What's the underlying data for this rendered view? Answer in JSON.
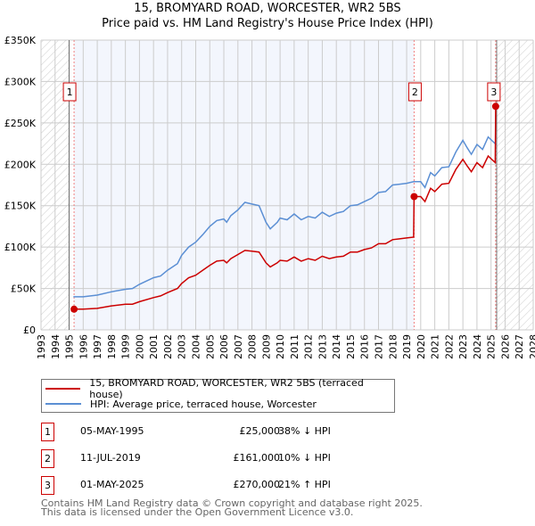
{
  "chart_data": {
    "type": "line",
    "title": "15, BROMYARD ROAD, WORCESTER, WR2 5BS",
    "subtitle": "Price paid vs. HM Land Registry's House Price Index (HPI)",
    "xlim": [
      1993,
      2028
    ],
    "ylim": [
      0,
      350000
    ],
    "yticks": [
      {
        "v": 0,
        "label": "£0"
      },
      {
        "v": 50000,
        "label": "£50K"
      },
      {
        "v": 100000,
        "label": "£100K"
      },
      {
        "v": 150000,
        "label": "£150K"
      },
      {
        "v": 200000,
        "label": "£200K"
      },
      {
        "v": 250000,
        "label": "£250K"
      },
      {
        "v": 300000,
        "label": "£300K"
      },
      {
        "v": 350000,
        "label": "£350K"
      }
    ],
    "xticks": [
      "1993",
      "1994",
      "1995",
      "1996",
      "1997",
      "1998",
      "1999",
      "2000",
      "2001",
      "2002",
      "2003",
      "2004",
      "2005",
      "2006",
      "2007",
      "2008",
      "2009",
      "2010",
      "2011",
      "2012",
      "2013",
      "2014",
      "2015",
      "2016",
      "2017",
      "2018",
      "2019",
      "2020",
      "2021",
      "2022",
      "2023",
      "2024",
      "2025",
      "2026",
      "2027",
      "2028"
    ],
    "grid": true,
    "shaded_ranges": [
      {
        "kind": "hatched",
        "from": 1993,
        "to": 1995.0
      },
      {
        "kind": "highlight",
        "from": 1995.35,
        "to": 2019.53
      },
      {
        "kind": "hatched",
        "from": 2025.4,
        "to": 2028
      }
    ],
    "series": [
      {
        "name": "15, BROMYARD ROAD, WORCESTER, WR2 5BS (terraced house)",
        "color": "#cc0000",
        "x": [
          1995.35,
          1996,
          1997,
          1998,
          1999,
          1999.5,
          2000,
          2001,
          2001.5,
          2002,
          2002.7,
          2003,
          2003.5,
          2004,
          2004.5,
          2005,
          2005.5,
          2006,
          2006.2,
          2006.5,
          2007,
          2007.5,
          2008,
          2008.5,
          2009,
          2009.3,
          2009.8,
          2010,
          2010.5,
          2011,
          2011.5,
          2012,
          2012.5,
          2013,
          2013.5,
          2014,
          2014.5,
          2015,
          2015.5,
          2016,
          2016.5,
          2017,
          2017.5,
          2018,
          2018.5,
          2019,
          2019.5,
          2019.53,
          2020,
          2020.3,
          2020.7,
          2021,
          2021.5,
          2022,
          2022.5,
          2023,
          2023.3,
          2023.6,
          2024,
          2024.4,
          2024.8,
          2025.3,
          2025.33
        ],
        "y": [
          25000,
          25000,
          26000,
          29000,
          31000,
          31000,
          34000,
          39000,
          41000,
          45000,
          50000,
          56000,
          63000,
          66000,
          72000,
          78000,
          83000,
          84000,
          81000,
          86000,
          91000,
          96000,
          95000,
          94000,
          81000,
          76000,
          81000,
          84000,
          83000,
          88000,
          83000,
          86000,
          84000,
          89000,
          86000,
          88000,
          89000,
          94000,
          94000,
          97000,
          99000,
          104000,
          104000,
          109000,
          110000,
          111000,
          112000,
          161000,
          161000,
          155000,
          171000,
          167000,
          176000,
          177000,
          194000,
          206000,
          198000,
          191000,
          202000,
          196000,
          210000,
          202000,
          270000
        ]
      },
      {
        "name": "HPI: Average price, terraced house, Worcester",
        "color": "#5b8fd4",
        "x": [
          1995.3,
          1996,
          1997,
          1998,
          1999,
          1999.5,
          2000,
          2001,
          2001.5,
          2002,
          2002.7,
          2003,
          2003.5,
          2004,
          2004.5,
          2005,
          2005.5,
          2006,
          2006.2,
          2006.5,
          2007,
          2007.5,
          2008,
          2008.5,
          2009,
          2009.3,
          2009.8,
          2010,
          2010.5,
          2011,
          2011.5,
          2012,
          2012.5,
          2013,
          2013.5,
          2014,
          2014.5,
          2015,
          2015.5,
          2016,
          2016.5,
          2017,
          2017.5,
          2018,
          2018.5,
          2019,
          2019.5,
          2020,
          2020.3,
          2020.7,
          2021,
          2021.5,
          2022,
          2022.5,
          2023,
          2023.3,
          2023.6,
          2024,
          2024.4,
          2024.8,
          2025.35
        ],
        "y": [
          40000,
          40000,
          42000,
          46000,
          49000,
          50000,
          55000,
          63000,
          65000,
          72000,
          80000,
          90000,
          100000,
          106000,
          115000,
          125000,
          132000,
          134000,
          130000,
          138000,
          145000,
          154000,
          152000,
          150000,
          130000,
          122000,
          130000,
          135000,
          133000,
          140000,
          133000,
          137000,
          135000,
          142000,
          137000,
          141000,
          143000,
          150000,
          151000,
          155000,
          159000,
          166000,
          167000,
          175000,
          176000,
          177000,
          179000,
          179000,
          172000,
          190000,
          186000,
          196000,
          197000,
          215000,
          229000,
          220000,
          212000,
          224000,
          218000,
          233000,
          224000
        ]
      }
    ],
    "sales": [
      {
        "n": "1",
        "x": 1995.35,
        "y": 25000,
        "date": "05-MAY-1995",
        "price": "£25,000",
        "hpi": "38% ↓ HPI"
      },
      {
        "n": "2",
        "x": 2019.53,
        "y": 161000,
        "date": "11-JUL-2019",
        "price": "£161,000",
        "hpi": "10% ↓ HPI"
      },
      {
        "n": "3",
        "x": 2025.33,
        "y": 270000,
        "date": "01-MAY-2025",
        "price": "£270,000",
        "hpi": "21% ↑ HPI"
      }
    ]
  },
  "legend": {
    "red_label": "15, BROMYARD ROAD, WORCESTER, WR2 5BS (terraced house)",
    "blue_label": "HPI: Average price, terraced house, Worcester"
  },
  "footer": {
    "line1": "Contains HM Land Registry data © Crown copyright and database right 2025.",
    "line2": "This data is licensed under the Open Government Licence v3.0."
  }
}
